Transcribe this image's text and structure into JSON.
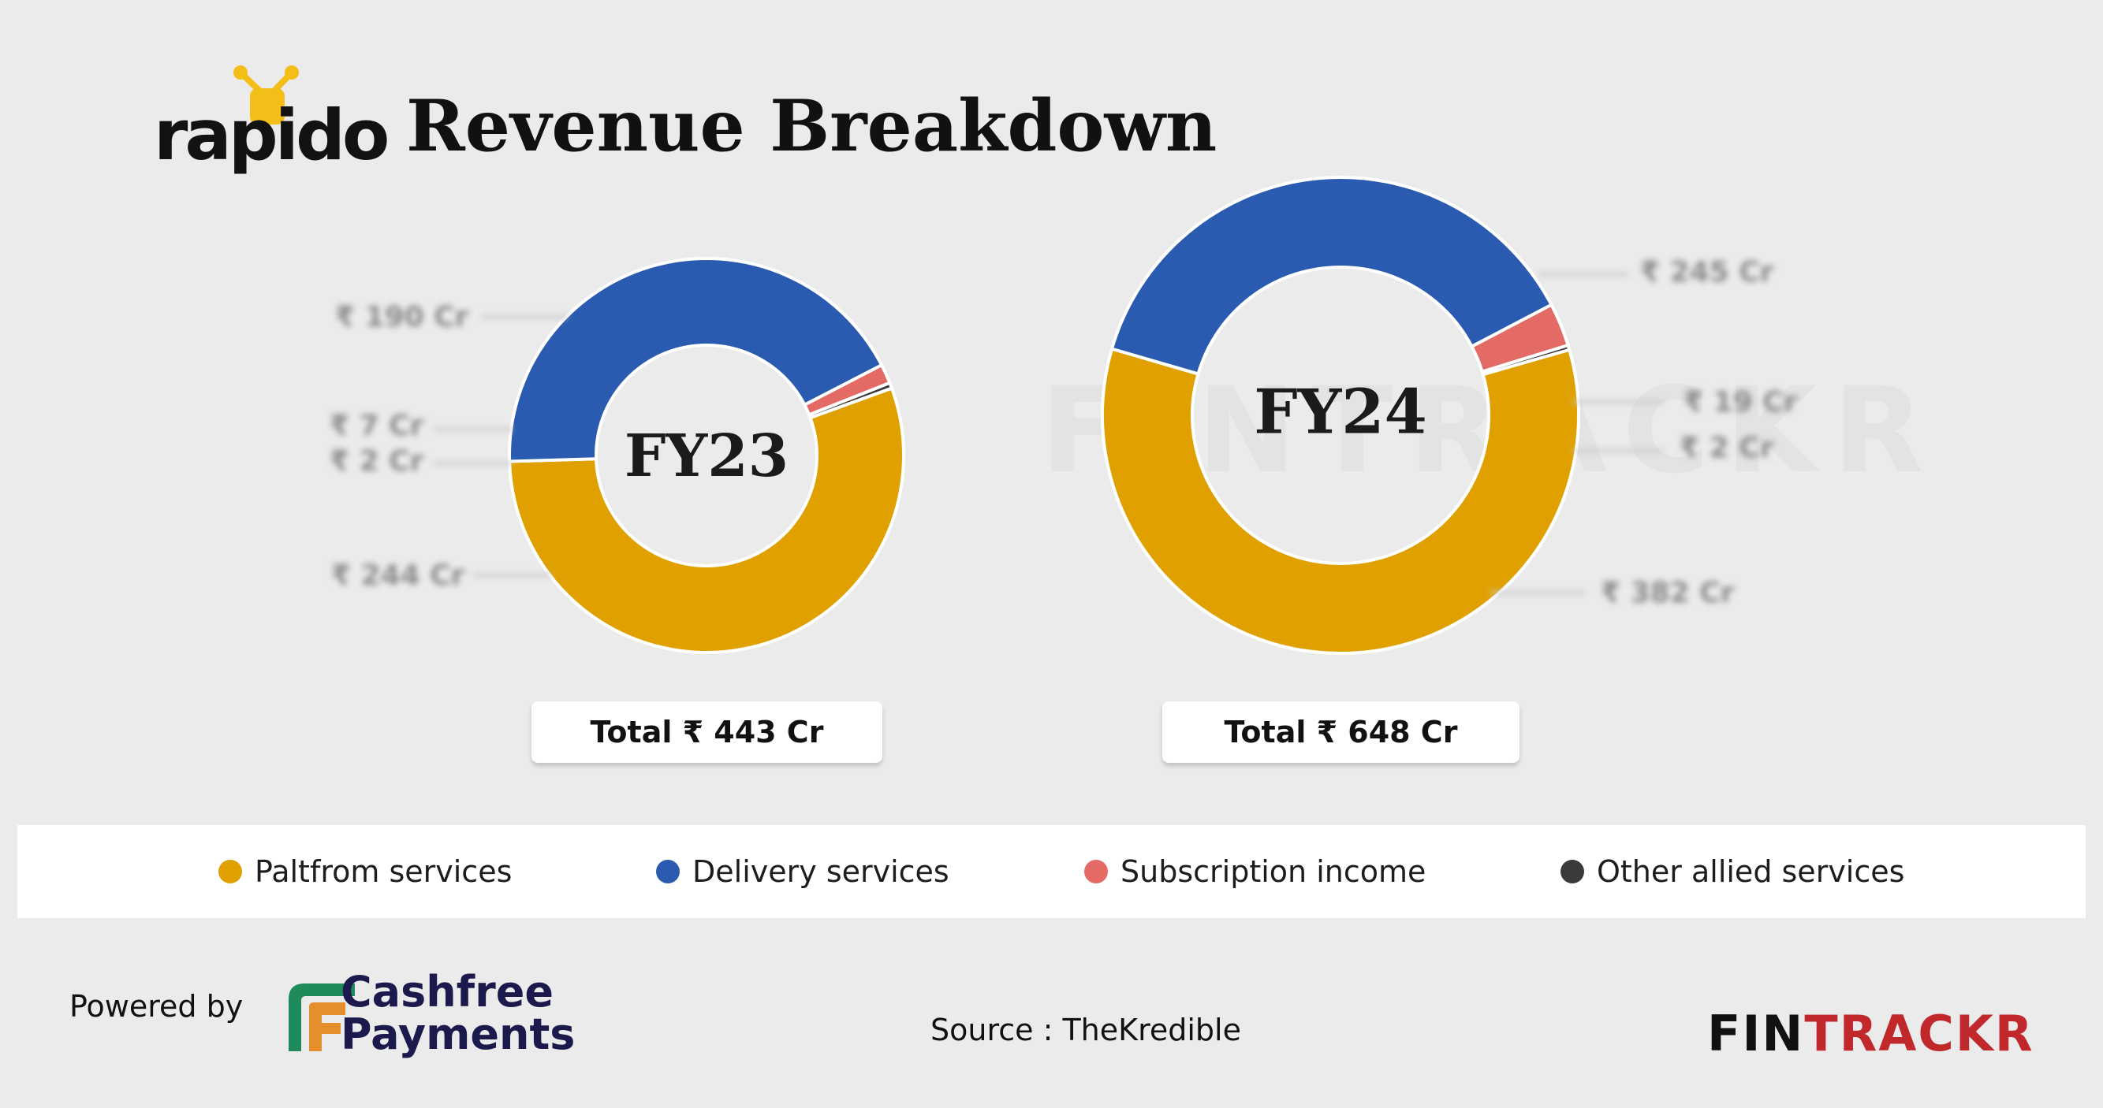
{
  "header": {
    "brand": "rapido",
    "title": "Revenue Breakdown"
  },
  "colors": {
    "platform": "#e0a100",
    "delivery": "#2a5bb0",
    "subscription": "#e46a66",
    "other": "#3a3a3a"
  },
  "chart_data": [
    {
      "type": "pie",
      "title": "FY23",
      "series": [
        {
          "name": "Paltfrom services",
          "value": 244,
          "label": "₹ 244 Cr"
        },
        {
          "name": "Delivery services",
          "value": 190,
          "label": "₹ 190 Cr"
        },
        {
          "name": "Subscription income",
          "value": 7,
          "label": "₹ 7 Cr"
        },
        {
          "name": "Other allied services",
          "value": 2,
          "label": "₹ 2 Cr"
        }
      ],
      "total_label": "Total ₹ 443 Cr"
    },
    {
      "type": "pie",
      "title": "FY24",
      "series": [
        {
          "name": "Paltfrom services",
          "value": 382,
          "label": "₹ 382 Cr"
        },
        {
          "name": "Delivery services",
          "value": 245,
          "label": "₹ 245 Cr"
        },
        {
          "name": "Subscription income",
          "value": 19,
          "label": "₹ 19 Cr"
        },
        {
          "name": "Other allied services",
          "value": 2,
          "label": "₹ 2 Cr"
        }
      ],
      "total_label": "Total ₹ 648 Cr"
    }
  ],
  "legend": [
    {
      "label": "Paltfrom services",
      "color": "#e0a100"
    },
    {
      "label": "Delivery services",
      "color": "#2a5bb0"
    },
    {
      "label": "Subscription income",
      "color": "#e46a66"
    },
    {
      "label": "Other allied services",
      "color": "#3a3a3a"
    }
  ],
  "footer": {
    "powered_by": "Powered by",
    "cashfree_line1": "Cashfree",
    "cashfree_line2": "Payments",
    "source": "Source : TheKredible",
    "fintrackr_a": "FIN",
    "fintrackr_b": "TRACKR"
  }
}
